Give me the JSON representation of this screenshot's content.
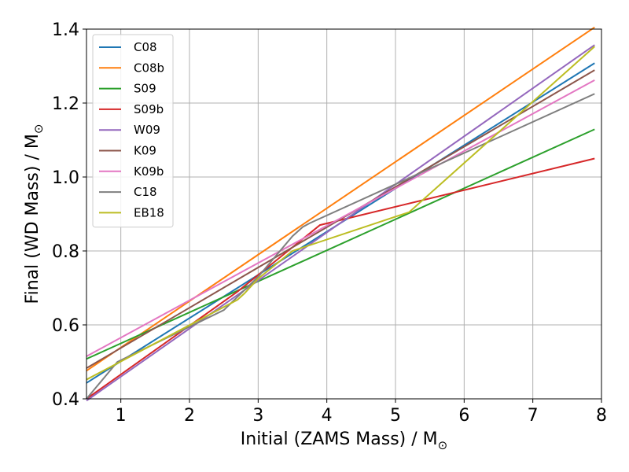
{
  "chart_data": {
    "type": "line",
    "title": "",
    "xlabel": "Initial (ZAMS Mass) / M",
    "xlabel_symbol": "⊙",
    "ylabel": "Final (WD Mass) / M",
    "ylabel_symbol": "⊙",
    "xlim": [
      0.5,
      8.0
    ],
    "ylim": [
      0.4,
      1.4
    ],
    "xticks": [
      1,
      2,
      3,
      4,
      5,
      6,
      7,
      8
    ],
    "yticks": [
      0.4,
      0.6,
      0.8,
      1.0,
      1.2,
      1.4
    ],
    "xtick_labels": [
      "1",
      "2",
      "3",
      "4",
      "5",
      "6",
      "7",
      "8"
    ],
    "ytick_labels": [
      "0.4",
      "0.6",
      "0.8",
      "1.0",
      "1.2",
      "1.4"
    ],
    "grid": true,
    "legend_position": "upper-left",
    "series": [
      {
        "name": "C08",
        "color": "#1f77b4",
        "x": [
          0.5,
          7.9
        ],
        "y": [
          0.443,
          1.308
        ]
      },
      {
        "name": "C08b",
        "color": "#ff7f0e",
        "x": [
          0.5,
          7.9
        ],
        "y": [
          0.476,
          1.405
        ]
      },
      {
        "name": "S09",
        "color": "#2ca02c",
        "x": [
          0.5,
          7.9
        ],
        "y": [
          0.508,
          1.129
        ]
      },
      {
        "name": "S09b",
        "color": "#d62728",
        "x": [
          0.5,
          2.7,
          3.9,
          7.9
        ],
        "y": [
          0.4,
          0.69,
          0.87,
          1.05
        ]
      },
      {
        "name": "W09",
        "color": "#9467bd",
        "x": [
          0.5,
          7.9
        ],
        "y": [
          0.395,
          1.357
        ]
      },
      {
        "name": "K09",
        "color": "#8c564b",
        "x": [
          0.5,
          7.9
        ],
        "y": [
          0.483,
          1.289
        ]
      },
      {
        "name": "K09b",
        "color": "#e377c2",
        "x": [
          0.5,
          7.9
        ],
        "y": [
          0.515,
          1.262
        ]
      },
      {
        "name": "C18",
        "color": "#7f7f7f",
        "x": [
          0.5,
          0.95,
          2.5,
          3.0,
          3.5,
          3.65,
          3.75,
          7.9
        ],
        "y": [
          0.4,
          0.5,
          0.64,
          0.73,
          0.84,
          0.865,
          0.875,
          1.225
        ]
      },
      {
        "name": "EB18",
        "color": "#bcbd22",
        "x": [
          0.5,
          2.7,
          2.8,
          3.0,
          3.5,
          5.2,
          7.9
        ],
        "y": [
          0.452,
          0.668,
          0.685,
          0.725,
          0.8,
          0.905,
          1.353
        ]
      }
    ]
  }
}
